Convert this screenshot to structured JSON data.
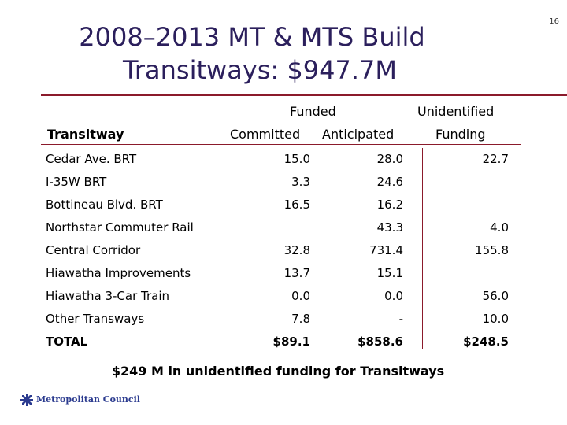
{
  "page_number": "16",
  "title": {
    "line1": "2008–2013 MT & MTS Build",
    "line2": "Transitways: $947.7M"
  },
  "table": {
    "group_funded": "Funded",
    "group_unidentified": "Unidentified",
    "col_transitway": "Transitway",
    "col_committed": "Committed",
    "col_anticipated": "Anticipated",
    "col_funding": "Funding",
    "rows": [
      {
        "name": "Cedar Ave. BRT",
        "committed": "15.0",
        "anticipated": "28.0",
        "unidentified": "22.7"
      },
      {
        "name": "I-35W BRT",
        "committed": "3.3",
        "anticipated": "24.6",
        "unidentified": ""
      },
      {
        "name": "Bottineau Blvd. BRT",
        "committed": "16.5",
        "anticipated": "16.2",
        "unidentified": ""
      },
      {
        "name": "Northstar Commuter Rail",
        "committed": "",
        "anticipated": "43.3",
        "unidentified": "4.0"
      },
      {
        "name": "Central Corridor",
        "committed": "32.8",
        "anticipated": "731.4",
        "unidentified": "155.8"
      },
      {
        "name": "Hiawatha Improvements",
        "committed": "13.7",
        "anticipated": "15.1",
        "unidentified": ""
      },
      {
        "name": "Hiawatha 3-Car Train",
        "committed": "0.0",
        "anticipated": "0.0",
        "unidentified": "56.0"
      },
      {
        "name": "Other Transways",
        "committed": "7.8",
        "anticipated": "-",
        "unidentified": "10.0"
      }
    ],
    "total": {
      "name": "TOTAL",
      "committed": "$89.1",
      "anticipated": "$858.6",
      "unidentified": "$248.5"
    }
  },
  "footnote": "$249 M in unidentified funding for Transitways",
  "logo": {
    "text": "Metropolitan Council",
    "icon": "metropolitan-council-logo-icon"
  },
  "colors": {
    "title": "#2b1f5c",
    "rule": "#8b1a2b",
    "logo": "#2b3b8f"
  }
}
